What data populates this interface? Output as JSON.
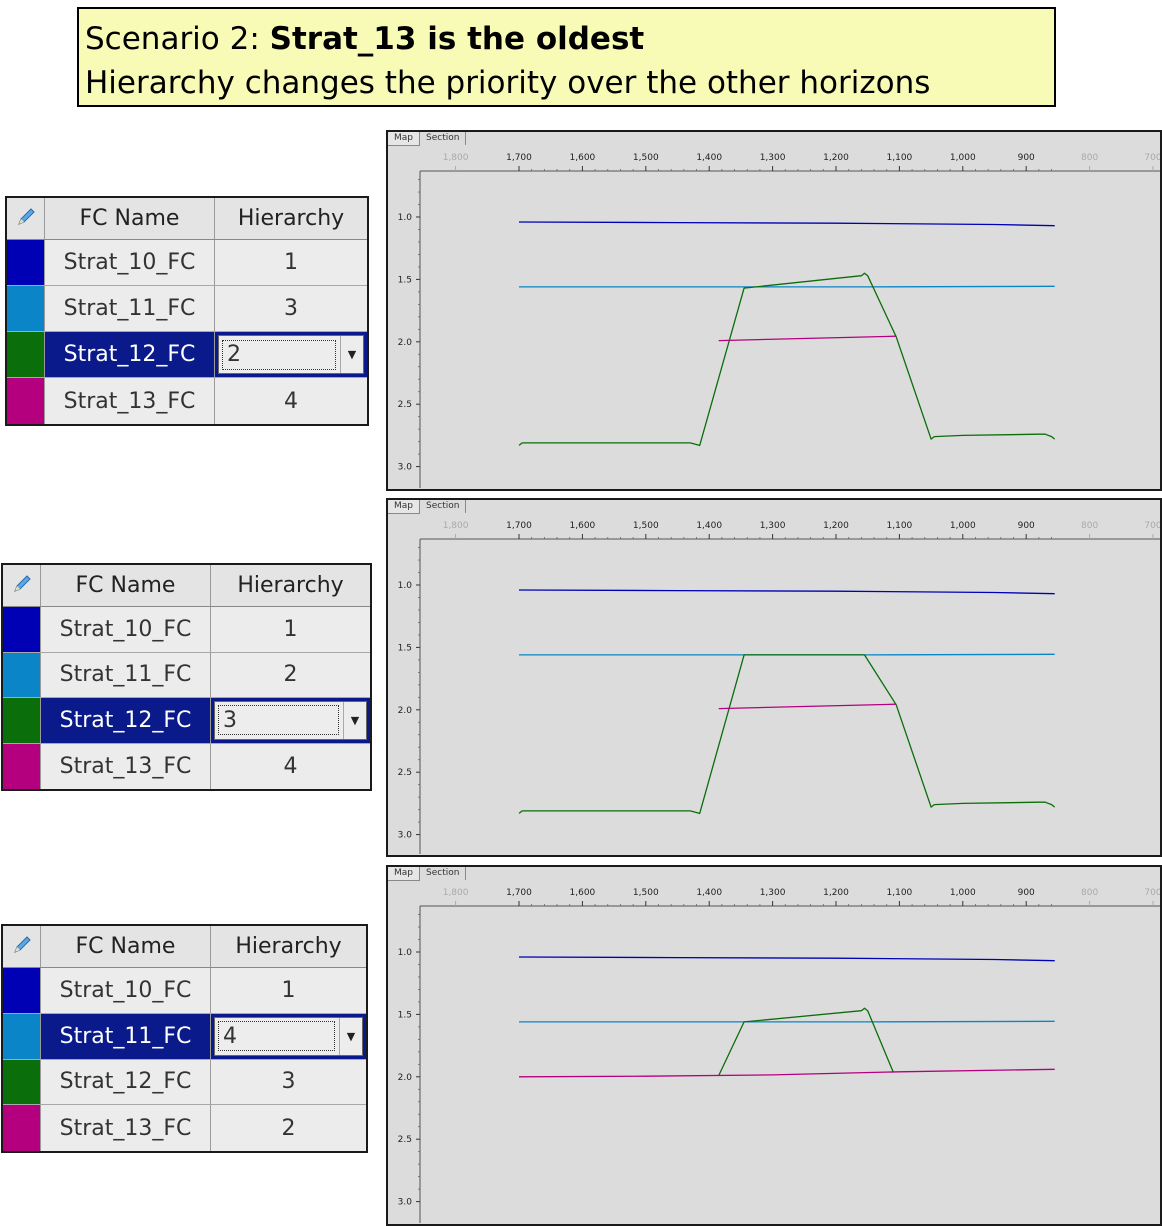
{
  "title": {
    "prefix": "Scenario 2: ",
    "bold": "Strat_13 is the oldest",
    "subtitle": "Hierarchy changes the priority over the other horizons"
  },
  "columns": {
    "name": "FC Name",
    "hierarchy": "Hierarchy"
  },
  "icons": {
    "edit": "pencil-icon",
    "dropdown": "chevron-down-icon"
  },
  "tabs": [
    "Map",
    "Section"
  ],
  "colors": {
    "Strat_10_FC": "#0000b4",
    "Strat_11_FC": "#0a86c8",
    "Strat_12_FC": "#0a6e0a",
    "Strat_13_FC": "#b4007f",
    "selected": "#0a1a8a"
  },
  "tables": [
    {
      "rows": [
        {
          "name": "Strat_10_FC",
          "value": "1",
          "selected": false
        },
        {
          "name": "Strat_11_FC",
          "value": "3",
          "selected": false
        },
        {
          "name": "Strat_12_FC",
          "value": "2",
          "selected": true
        },
        {
          "name": "Strat_13_FC",
          "value": "4",
          "selected": false
        }
      ]
    },
    {
      "rows": [
        {
          "name": "Strat_10_FC",
          "value": "1",
          "selected": false
        },
        {
          "name": "Strat_11_FC",
          "value": "2",
          "selected": false
        },
        {
          "name": "Strat_12_FC",
          "value": "3",
          "selected": true
        },
        {
          "name": "Strat_13_FC",
          "value": "4",
          "selected": false
        }
      ]
    },
    {
      "rows": [
        {
          "name": "Strat_10_FC",
          "value": "1",
          "selected": false
        },
        {
          "name": "Strat_11_FC",
          "value": "4",
          "selected": true
        },
        {
          "name": "Strat_12_FC",
          "value": "3",
          "selected": false
        },
        {
          "name": "Strat_13_FC",
          "value": "2",
          "selected": false
        }
      ]
    }
  ],
  "chart_data": [
    {
      "type": "line",
      "xlim": [
        1800,
        700
      ],
      "ylim": [
        0.65,
        3.05
      ],
      "x_ticks": [
        "1,800",
        "1,700",
        "1,600",
        "1,500",
        "1,400",
        "1,300",
        "1,200",
        "1,100",
        "1,000",
        "900",
        "800",
        "700"
      ],
      "y_ticks": [
        "1.0",
        "1.5",
        "2.0",
        "2.5",
        "3.0"
      ],
      "series": [
        {
          "name": "Strat_10_FC",
          "color": "#0000b4",
          "x": [
            1700,
            1450,
            1200,
            950,
            855
          ],
          "y": [
            1.04,
            1.045,
            1.05,
            1.06,
            1.07
          ]
        },
        {
          "name": "Strat_11_FC",
          "color": "#0a86c8",
          "x": [
            1700,
            1345,
            1155,
            855
          ],
          "y": [
            1.56,
            1.56,
            1.56,
            1.555
          ]
        },
        {
          "name": "Strat_12_FC",
          "color": "#0a6e0a",
          "x": [
            1700,
            1695,
            1560,
            1430,
            1415,
            1345,
            1160,
            1155,
            1150,
            1105,
            1050,
            1045,
            1000,
            880,
            870,
            860,
            855
          ],
          "y": [
            2.83,
            2.81,
            2.81,
            2.81,
            2.83,
            1.57,
            1.47,
            1.45,
            1.47,
            1.96,
            2.78,
            2.76,
            2.75,
            2.74,
            2.74,
            2.76,
            2.78
          ]
        },
        {
          "name": "Strat_13_FC",
          "color": "#b4007f",
          "x": [
            1385,
            1105
          ],
          "y": [
            1.99,
            1.955
          ]
        }
      ]
    },
    {
      "type": "line",
      "xlim": [
        1800,
        700
      ],
      "ylim": [
        0.65,
        3.05
      ],
      "x_ticks": [
        "1,800",
        "1,700",
        "1,600",
        "1,500",
        "1,400",
        "1,300",
        "1,200",
        "1,100",
        "1,000",
        "900",
        "800",
        "700"
      ],
      "y_ticks": [
        "1.0",
        "1.5",
        "2.0",
        "2.5",
        "3.0"
      ],
      "series": [
        {
          "name": "Strat_10_FC",
          "color": "#0000b4",
          "x": [
            1700,
            1450,
            1200,
            950,
            855
          ],
          "y": [
            1.04,
            1.045,
            1.05,
            1.06,
            1.07
          ]
        },
        {
          "name": "Strat_11_FC",
          "color": "#0a86c8",
          "x": [
            1700,
            1345,
            1155,
            855
          ],
          "y": [
            1.56,
            1.56,
            1.56,
            1.555
          ]
        },
        {
          "name": "Strat_12_FC",
          "color": "#0a6e0a",
          "x": [
            1700,
            1695,
            1560,
            1430,
            1415,
            1345,
            1155,
            1105,
            1050,
            1045,
            1000,
            880,
            870,
            860,
            855
          ],
          "y": [
            2.83,
            2.81,
            2.81,
            2.81,
            2.83,
            1.56,
            1.56,
            1.96,
            2.78,
            2.76,
            2.75,
            2.74,
            2.74,
            2.76,
            2.78
          ]
        },
        {
          "name": "Strat_13_FC",
          "color": "#b4007f",
          "x": [
            1385,
            1105
          ],
          "y": [
            1.99,
            1.955
          ]
        }
      ]
    },
    {
      "type": "line",
      "xlim": [
        1800,
        700
      ],
      "ylim": [
        0.65,
        3.05
      ],
      "x_ticks": [
        "1,800",
        "1,700",
        "1,600",
        "1,500",
        "1,400",
        "1,300",
        "1,200",
        "1,100",
        "1,000",
        "900",
        "800",
        "700"
      ],
      "y_ticks": [
        "1.0",
        "1.5",
        "2.0",
        "2.5",
        "3.0"
      ],
      "series": [
        {
          "name": "Strat_10_FC",
          "color": "#0000b4",
          "x": [
            1700,
            1450,
            1200,
            950,
            855
          ],
          "y": [
            1.04,
            1.045,
            1.05,
            1.06,
            1.07
          ]
        },
        {
          "name": "Strat_11_FC",
          "color": "#0a86c8",
          "x": [
            1700,
            1345,
            1155,
            855
          ],
          "y": [
            1.56,
            1.56,
            1.56,
            1.555
          ]
        },
        {
          "name": "Strat_12_FC",
          "color": "#0a6e0a",
          "x": [
            1385,
            1345,
            1160,
            1155,
            1150,
            1110
          ],
          "y": [
            1.99,
            1.56,
            1.47,
            1.45,
            1.47,
            1.96
          ]
        },
        {
          "name": "Strat_13_FC",
          "color": "#b4007f",
          "x": [
            1700,
            1500,
            1300,
            1100,
            855
          ],
          "y": [
            2.0,
            1.995,
            1.985,
            1.96,
            1.94
          ]
        }
      ]
    }
  ]
}
